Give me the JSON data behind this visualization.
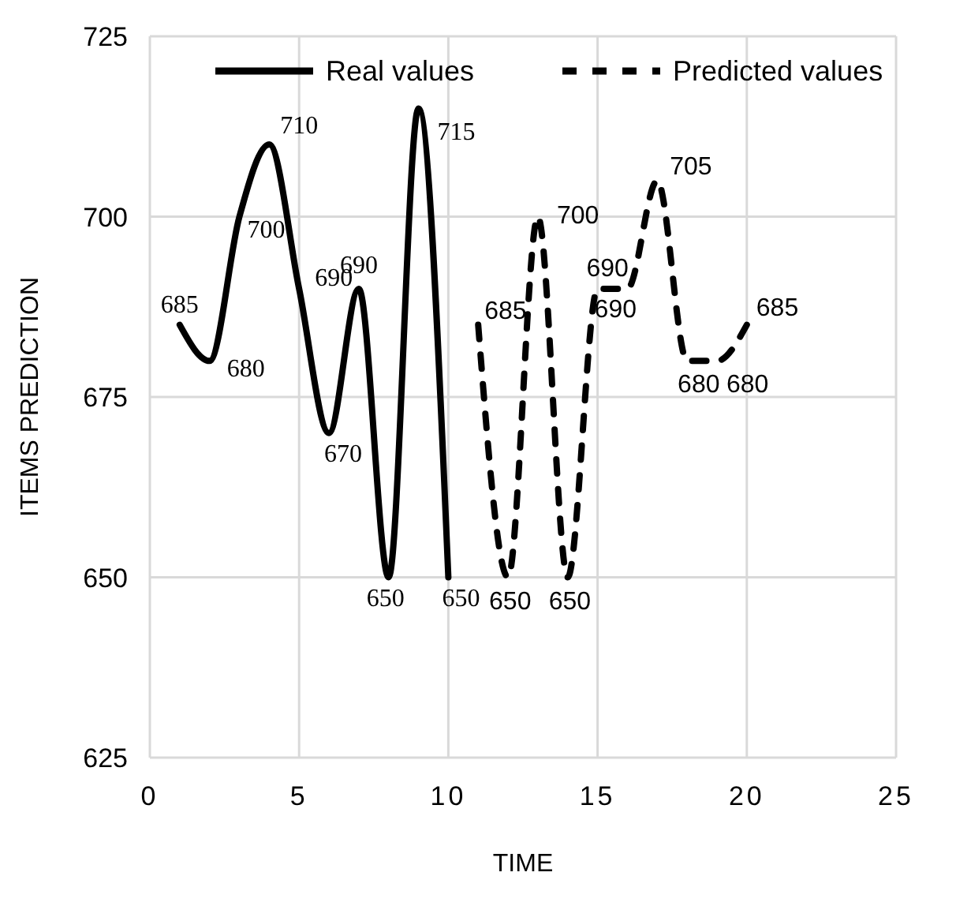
{
  "chart_data": {
    "type": "line",
    "xlabel": "TIME",
    "ylabel": "ITEMS PREDICTION",
    "xlim": [
      0,
      25
    ],
    "xticks": [
      0,
      5,
      10,
      15,
      20,
      25
    ],
    "ylim": [
      625,
      725
    ],
    "yticks": [
      625,
      650,
      675,
      700,
      725
    ],
    "grid": true,
    "legend": "top",
    "data_labels": true,
    "marker": "none",
    "series": [
      {
        "name": "Real values",
        "color": "#000000",
        "line_style": "solid",
        "x": [
          1,
          2,
          3,
          4,
          5,
          6,
          7,
          8,
          9,
          10
        ],
        "values": [
          685,
          680,
          700,
          710,
          690,
          670,
          690,
          650,
          715,
          650
        ]
      },
      {
        "name": "Predicted values",
        "color": "#000000",
        "line_style": "dashed",
        "x": [
          11,
          12,
          13,
          14,
          15,
          16,
          17,
          18,
          19,
          20
        ],
        "values": [
          685,
          650,
          700,
          650,
          690,
          690,
          705,
          680,
          680,
          685
        ]
      }
    ]
  }
}
